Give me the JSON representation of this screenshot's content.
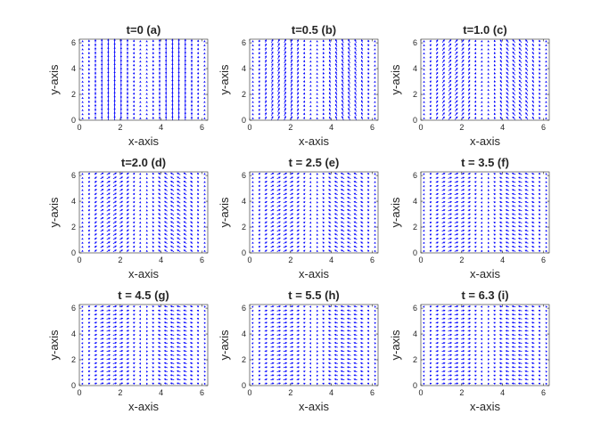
{
  "figure": {
    "background": "#ffffff",
    "arrow_color": "#0000ff",
    "axis_color": "#262626"
  },
  "chart_data": [
    {
      "type": "quiver",
      "title": "t=0  (a)",
      "xlabel": "x-axis",
      "ylabel": "y-axis",
      "xlim": [
        0,
        6.283
      ],
      "ylim": [
        0,
        6.283
      ],
      "xticks": [
        "0",
        "2",
        "4",
        "6"
      ],
      "yticks": [
        "0",
        "2",
        "4",
        "6"
      ],
      "grid": false,
      "t": 0,
      "field": "tilt(x,t) = sin(x)*t; length ∝ |sin(x)|"
    },
    {
      "type": "quiver",
      "title": "t=0.5  (b)",
      "xlabel": "x-axis",
      "ylabel": "y-axis",
      "xlim": [
        0,
        6.283
      ],
      "ylim": [
        0,
        6.283
      ],
      "xticks": [
        "0",
        "2",
        "4",
        "6"
      ],
      "yticks": [
        "0",
        "2",
        "4",
        "6"
      ],
      "grid": false,
      "t": 0.5
    },
    {
      "type": "quiver",
      "title": "t=1.0  (c)",
      "xlabel": "x-axis",
      "ylabel": "y-axis",
      "xlim": [
        0,
        6.283
      ],
      "ylim": [
        0,
        6.283
      ],
      "xticks": [
        "0",
        "2",
        "4",
        "6"
      ],
      "yticks": [
        "0",
        "2",
        "4",
        "6"
      ],
      "grid": false,
      "t": 1.0
    },
    {
      "type": "quiver",
      "title": "t=2.0  (d)",
      "xlabel": "x-axis",
      "ylabel": "y-axis",
      "xlim": [
        0,
        6.283
      ],
      "ylim": [
        0,
        6.283
      ],
      "xticks": [
        "0",
        "2",
        "4",
        "6"
      ],
      "yticks": [
        "0",
        "2",
        "4",
        "6"
      ],
      "grid": false,
      "t": 2.0
    },
    {
      "type": "quiver",
      "title": "t = 2.5  (e)",
      "xlabel": "x-axis",
      "ylabel": "y-axis",
      "xlim": [
        0,
        6.283
      ],
      "ylim": [
        0,
        6.283
      ],
      "xticks": [
        "0",
        "2",
        "4",
        "6"
      ],
      "yticks": [
        "0",
        "2",
        "4",
        "6"
      ],
      "grid": false,
      "t": 2.5
    },
    {
      "type": "quiver",
      "title": "t = 3.5  (f)",
      "xlabel": "x-axis",
      "ylabel": "y-axis",
      "xlim": [
        0,
        6.283
      ],
      "ylim": [
        0,
        6.283
      ],
      "xticks": [
        "0",
        "2",
        "4",
        "6"
      ],
      "yticks": [
        "0",
        "2",
        "4",
        "6"
      ],
      "grid": false,
      "t": 3.5
    },
    {
      "type": "quiver",
      "title": "t = 4.5  (g)",
      "xlabel": "x-axis",
      "ylabel": "y-axis",
      "xlim": [
        0,
        6.283
      ],
      "ylim": [
        0,
        6.283
      ],
      "xticks": [
        "0",
        "2",
        "4",
        "6"
      ],
      "yticks": [
        "0",
        "2",
        "4",
        "6"
      ],
      "grid": false,
      "t": 4.5
    },
    {
      "type": "quiver",
      "title": "t = 5.5  (h)",
      "xlabel": "x-axis",
      "ylabel": "y-axis",
      "xlim": [
        0,
        6.283
      ],
      "ylim": [
        0,
        6.283
      ],
      "xticks": [
        "0",
        "2",
        "4",
        "6"
      ],
      "yticks": [
        "0",
        "2",
        "4",
        "6"
      ],
      "grid": false,
      "t": 5.5
    },
    {
      "type": "quiver",
      "title": "t = 6.3  (i)",
      "xlabel": "x-axis",
      "ylabel": "y-axis",
      "xlim": [
        0,
        6.283
      ],
      "ylim": [
        0,
        6.283
      ],
      "xticks": [
        "0",
        "2",
        "4",
        "6"
      ],
      "yticks": [
        "0",
        "2",
        "4",
        "6"
      ],
      "grid": false,
      "t": 6.3
    }
  ]
}
